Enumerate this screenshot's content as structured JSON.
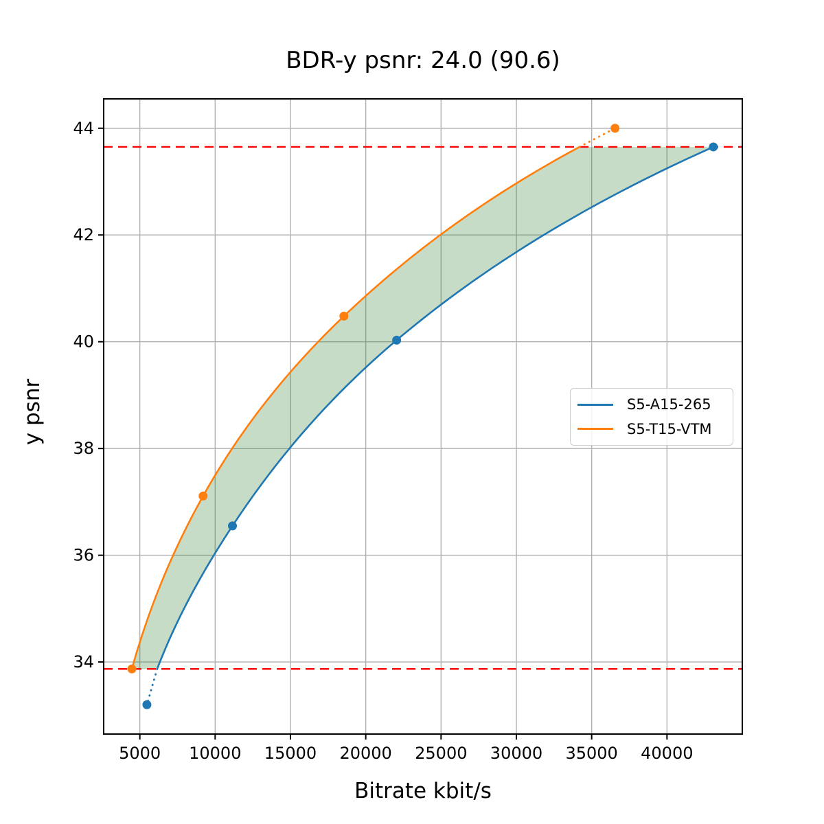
{
  "title": "BDR-y psnr: 24.0 (90.6)",
  "chart_data": {
    "type": "line",
    "title": "BDR-y psnr: 24.0 (90.6)",
    "xlabel": "Bitrate kbit/s",
    "ylabel": "y psnr",
    "xlim": [
      2600,
      45000
    ],
    "ylim": [
      32.65,
      44.55
    ],
    "xticks": [
      5000,
      10000,
      15000,
      20000,
      25000,
      30000,
      35000,
      40000
    ],
    "yticks": [
      34,
      36,
      38,
      40,
      42,
      44
    ],
    "grid": true,
    "grid_color": "#b0b0b0",
    "background_color": "#ffffff",
    "frame_color": "#000000",
    "legend_position": "center-right",
    "series": [
      {
        "name": "S5-A15-265",
        "color": "#1f77b4",
        "markers": [
          [
            5470,
            33.2
          ],
          [
            11150,
            36.55
          ],
          [
            22050,
            40.03
          ],
          [
            43080,
            43.65
          ]
        ],
        "solid_curve": [
          [
            6150,
            33.87
          ],
          [
            11150,
            36.55
          ],
          [
            22050,
            40.03
          ],
          [
            43080,
            43.65
          ]
        ],
        "dotted_segment": [
          [
            6150,
            33.87
          ],
          [
            5470,
            33.2
          ]
        ]
      },
      {
        "name": "S5-T15-VTM",
        "color": "#ff7f0e",
        "markers": [
          [
            4470,
            33.87
          ],
          [
            9200,
            37.11
          ],
          [
            18550,
            40.48
          ],
          [
            36550,
            44.0
          ]
        ],
        "solid_curve": [
          [
            4470,
            33.87
          ],
          [
            9200,
            37.11
          ],
          [
            18550,
            40.48
          ],
          [
            34190,
            43.65
          ]
        ],
        "dotted_segment": [
          [
            34190,
            43.65
          ],
          [
            36550,
            44.0
          ]
        ]
      }
    ],
    "overlap_hlines": {
      "values": [
        33.87,
        43.65
      ],
      "color": "#ff0000",
      "style": "dashed"
    },
    "shaded_region": {
      "between": [
        "S5-T15-VTM",
        "S5-A15-265"
      ],
      "color": "rgba(34,120,34,0.26)"
    }
  }
}
